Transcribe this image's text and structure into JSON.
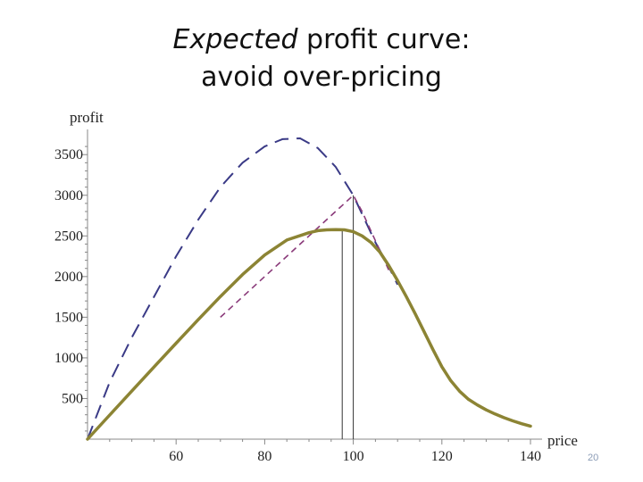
{
  "slide": {
    "title_emph": "Expected",
    "title_rest": " profit curve:",
    "title_line2": "avoid over-pricing",
    "page_number": "20"
  },
  "colors": {
    "expected_profit": "#8c8434",
    "upper_dashed": "#3a3a86",
    "profit_dashed": "#8a3a7a",
    "marker_lines": "#333333",
    "axes": "#888888"
  },
  "chart_data": {
    "type": "line",
    "title": "",
    "xlabel": "price",
    "ylabel": "profit",
    "xlim": [
      40,
      140
    ],
    "ylim": [
      0,
      3700
    ],
    "x_ticks": [
      60,
      80,
      100,
      120,
      140
    ],
    "y_ticks": [
      500,
      1000,
      1500,
      2000,
      2500,
      3000,
      3500
    ],
    "grid": false,
    "series": [
      {
        "style": "solid",
        "x": [
          40,
          45,
          50,
          55,
          60,
          65,
          70,
          75,
          80,
          85,
          90,
          92,
          94,
          96,
          98,
          100,
          102,
          104,
          106,
          108,
          110,
          112,
          114,
          116,
          118,
          120,
          122,
          124,
          126,
          128,
          130,
          132,
          134,
          136,
          138,
          140
        ],
        "y": [
          0,
          296,
          592,
          887,
          1180,
          1470,
          1755,
          2025,
          2265,
          2450,
          2540,
          2565,
          2575,
          2578,
          2575,
          2552,
          2500,
          2420,
          2300,
          2135,
          1950,
          1750,
          1540,
          1320,
          1100,
          890,
          720,
          590,
          490,
          420,
          360,
          310,
          265,
          225,
          190,
          160
        ]
      },
      {
        "style": "long-dash",
        "x": [
          40,
          45,
          50,
          55,
          60,
          65,
          70,
          75,
          80,
          84,
          88,
          92,
          96,
          100,
          105,
          108,
          110
        ],
        "y": [
          0,
          700,
          1250,
          1750,
          2250,
          2700,
          3100,
          3400,
          3600,
          3690,
          3700,
          3580,
          3350,
          3000,
          2420,
          2120,
          1900
        ]
      },
      {
        "style": "short-dash",
        "x": [
          70,
          75,
          80,
          85,
          90,
          95,
          100,
          102,
          104,
          106,
          108
        ],
        "y": [
          1500,
          1750,
          2000,
          2250,
          2500,
          2750,
          3000,
          2800,
          2560,
          2320,
          2080
        ]
      }
    ],
    "reference_lines_x": [
      97.5,
      100
    ]
  }
}
